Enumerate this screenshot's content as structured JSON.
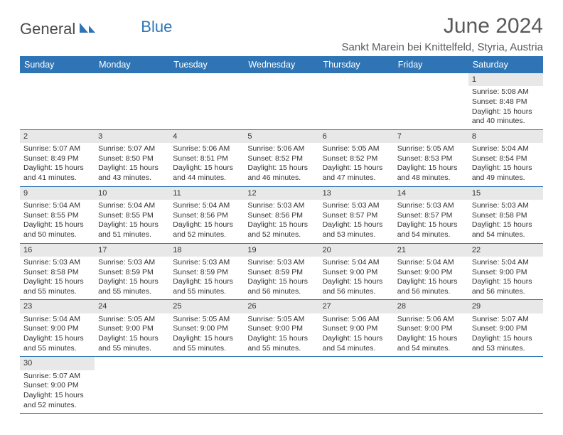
{
  "logo": {
    "general": "General",
    "blue": "Blue"
  },
  "header": {
    "title": "June 2024",
    "location": "Sankt Marein bei Knittelfeld, Styria, Austria"
  },
  "colors": {
    "header_bg": "#2f75b5",
    "header_text": "#ffffff",
    "daynum_bg": "#e8e8e8",
    "border": "#2f75b5",
    "title_color": "#595959"
  },
  "daysOfWeek": [
    "Sunday",
    "Monday",
    "Tuesday",
    "Wednesday",
    "Thursday",
    "Friday",
    "Saturday"
  ],
  "weeks": [
    [
      null,
      null,
      null,
      null,
      null,
      null,
      {
        "n": "1",
        "sr": "5:08 AM",
        "ss": "8:48 PM",
        "dl": "15 hours and 40 minutes."
      }
    ],
    [
      {
        "n": "2",
        "sr": "5:07 AM",
        "ss": "8:49 PM",
        "dl": "15 hours and 41 minutes."
      },
      {
        "n": "3",
        "sr": "5:07 AM",
        "ss": "8:50 PM",
        "dl": "15 hours and 43 minutes."
      },
      {
        "n": "4",
        "sr": "5:06 AM",
        "ss": "8:51 PM",
        "dl": "15 hours and 44 minutes."
      },
      {
        "n": "5",
        "sr": "5:06 AM",
        "ss": "8:52 PM",
        "dl": "15 hours and 46 minutes."
      },
      {
        "n": "6",
        "sr": "5:05 AM",
        "ss": "8:52 PM",
        "dl": "15 hours and 47 minutes."
      },
      {
        "n": "7",
        "sr": "5:05 AM",
        "ss": "8:53 PM",
        "dl": "15 hours and 48 minutes."
      },
      {
        "n": "8",
        "sr": "5:04 AM",
        "ss": "8:54 PM",
        "dl": "15 hours and 49 minutes."
      }
    ],
    [
      {
        "n": "9",
        "sr": "5:04 AM",
        "ss": "8:55 PM",
        "dl": "15 hours and 50 minutes."
      },
      {
        "n": "10",
        "sr": "5:04 AM",
        "ss": "8:55 PM",
        "dl": "15 hours and 51 minutes."
      },
      {
        "n": "11",
        "sr": "5:04 AM",
        "ss": "8:56 PM",
        "dl": "15 hours and 52 minutes."
      },
      {
        "n": "12",
        "sr": "5:03 AM",
        "ss": "8:56 PM",
        "dl": "15 hours and 52 minutes."
      },
      {
        "n": "13",
        "sr": "5:03 AM",
        "ss": "8:57 PM",
        "dl": "15 hours and 53 minutes."
      },
      {
        "n": "14",
        "sr": "5:03 AM",
        "ss": "8:57 PM",
        "dl": "15 hours and 54 minutes."
      },
      {
        "n": "15",
        "sr": "5:03 AM",
        "ss": "8:58 PM",
        "dl": "15 hours and 54 minutes."
      }
    ],
    [
      {
        "n": "16",
        "sr": "5:03 AM",
        "ss": "8:58 PM",
        "dl": "15 hours and 55 minutes."
      },
      {
        "n": "17",
        "sr": "5:03 AM",
        "ss": "8:59 PM",
        "dl": "15 hours and 55 minutes."
      },
      {
        "n": "18",
        "sr": "5:03 AM",
        "ss": "8:59 PM",
        "dl": "15 hours and 55 minutes."
      },
      {
        "n": "19",
        "sr": "5:03 AM",
        "ss": "8:59 PM",
        "dl": "15 hours and 56 minutes."
      },
      {
        "n": "20",
        "sr": "5:04 AM",
        "ss": "9:00 PM",
        "dl": "15 hours and 56 minutes."
      },
      {
        "n": "21",
        "sr": "5:04 AM",
        "ss": "9:00 PM",
        "dl": "15 hours and 56 minutes."
      },
      {
        "n": "22",
        "sr": "5:04 AM",
        "ss": "9:00 PM",
        "dl": "15 hours and 56 minutes."
      }
    ],
    [
      {
        "n": "23",
        "sr": "5:04 AM",
        "ss": "9:00 PM",
        "dl": "15 hours and 55 minutes."
      },
      {
        "n": "24",
        "sr": "5:05 AM",
        "ss": "9:00 PM",
        "dl": "15 hours and 55 minutes."
      },
      {
        "n": "25",
        "sr": "5:05 AM",
        "ss": "9:00 PM",
        "dl": "15 hours and 55 minutes."
      },
      {
        "n": "26",
        "sr": "5:05 AM",
        "ss": "9:00 PM",
        "dl": "15 hours and 55 minutes."
      },
      {
        "n": "27",
        "sr": "5:06 AM",
        "ss": "9:00 PM",
        "dl": "15 hours and 54 minutes."
      },
      {
        "n": "28",
        "sr": "5:06 AM",
        "ss": "9:00 PM",
        "dl": "15 hours and 54 minutes."
      },
      {
        "n": "29",
        "sr": "5:07 AM",
        "ss": "9:00 PM",
        "dl": "15 hours and 53 minutes."
      }
    ],
    [
      {
        "n": "30",
        "sr": "5:07 AM",
        "ss": "9:00 PM",
        "dl": "15 hours and 52 minutes."
      },
      null,
      null,
      null,
      null,
      null,
      null
    ]
  ],
  "labels": {
    "sunrise": "Sunrise: ",
    "sunset": "Sunset: ",
    "daylight": "Daylight: "
  }
}
